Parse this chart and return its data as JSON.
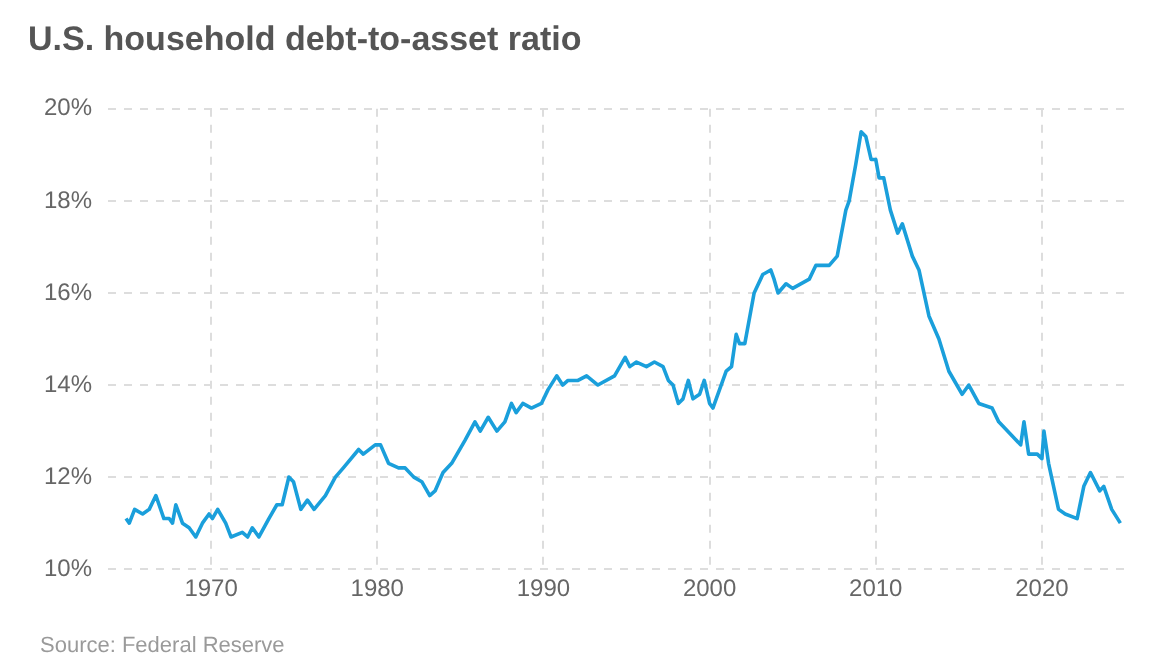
{
  "chart_data": {
    "type": "line",
    "title": "U.S. household debt-to-asset ratio",
    "annotations": [
      "Source: Federal Reserve"
    ],
    "xlim": [
      1963.8,
      2025.3
    ],
    "xticks": [
      1970,
      1980,
      1990,
      2000,
      2010,
      2020
    ],
    "ylim": [
      10,
      20
    ],
    "yticks": [
      {
        "value": 10,
        "label": "10%"
      },
      {
        "value": 12,
        "label": "12%"
      },
      {
        "value": 14,
        "label": "14%"
      },
      {
        "value": 16,
        "label": "16%"
      },
      {
        "value": 18,
        "label": "18%"
      },
      {
        "value": 20,
        "label": "20%"
      }
    ],
    "grid": true,
    "legend": false,
    "marker": "none",
    "line_style": "solid",
    "series": [
      {
        "color": "#1a9fdb",
        "x": [
          1964.88,
          1965.08,
          1965.4,
          1965.88,
          1966.28,
          1966.68,
          1967.16,
          1967.48,
          1967.68,
          1967.88,
          1968.28,
          1968.68,
          1969.08,
          1969.48,
          1969.88,
          1970.08,
          1970.4,
          1970.88,
          1971.2,
          1971.88,
          1972.2,
          1972.48,
          1972.88,
          1973.48,
          1973.96,
          1974.28,
          1974.68,
          1974.96,
          1975.4,
          1975.8,
          1976.2,
          1976.88,
          1977.48,
          1977.96,
          1978.88,
          1979.16,
          1979.88,
          1980.2,
          1980.68,
          1981.28,
          1981.68,
          1982.2,
          1982.68,
          1983.16,
          1983.48,
          1983.96,
          1984.48,
          1985.28,
          1985.88,
          1986.2,
          1986.68,
          1987.2,
          1987.68,
          1988.08,
          1988.36,
          1988.76,
          1989.28,
          1989.88,
          1990.28,
          1990.8,
          1991.16,
          1991.48,
          1992.08,
          1992.6,
          1993.28,
          1994.28,
          1994.6,
          1994.92,
          1995.2,
          1995.6,
          1996.2,
          1996.68,
          1997.2,
          1997.52,
          1997.8,
          1998.12,
          1998.4,
          1998.72,
          1999.0,
          1999.4,
          1999.68,
          2000.0,
          2000.2,
          2000.6,
          2001.0,
          2001.32,
          2001.6,
          2001.8,
          2002.12,
          2002.68,
          2003.2,
          2003.68,
          2003.88,
          2004.12,
          2004.6,
          2005.0,
          2006.0,
          2006.4,
          2006.8,
          2007.2,
          2007.68,
          2008.2,
          2008.4,
          2008.8,
          2009.12,
          2009.4,
          2009.72,
          2010.0,
          2010.2,
          2010.48,
          2010.88,
          2011.32,
          2011.6,
          2012.2,
          2012.6,
          2013.2,
          2013.8,
          2014.4,
          2015.2,
          2015.6,
          2016.2,
          2017.0,
          2017.4,
          2018.2,
          2018.72,
          2018.92,
          2019.2,
          2019.72,
          2020.0,
          2020.12,
          2020.4,
          2021.0,
          2021.4,
          2022.12,
          2022.52,
          2022.92,
          2023.48,
          2023.72,
          2024.2,
          2024.72
        ],
        "values": [
          11.1,
          11.0,
          11.3,
          11.2,
          11.3,
          11.6,
          11.1,
          11.1,
          11.0,
          11.4,
          11.0,
          10.9,
          10.7,
          11.0,
          11.2,
          11.1,
          11.3,
          11.0,
          10.7,
          10.8,
          10.7,
          10.9,
          10.7,
          11.1,
          11.4,
          11.4,
          12.0,
          11.9,
          11.3,
          11.5,
          11.3,
          11.6,
          12.0,
          12.2,
          12.6,
          12.5,
          12.7,
          12.7,
          12.3,
          12.2,
          12.2,
          12.0,
          11.9,
          11.6,
          11.7,
          12.1,
          12.3,
          12.8,
          13.2,
          13.0,
          13.3,
          13.0,
          13.2,
          13.6,
          13.4,
          13.6,
          13.5,
          13.6,
          13.9,
          14.2,
          14.0,
          14.1,
          14.1,
          14.2,
          14.0,
          14.2,
          14.4,
          14.6,
          14.4,
          14.5,
          14.4,
          14.5,
          14.4,
          14.1,
          14.0,
          13.6,
          13.7,
          14.1,
          13.7,
          13.8,
          14.1,
          13.6,
          13.5,
          13.9,
          14.3,
          14.4,
          15.1,
          14.9,
          14.9,
          16.0,
          16.4,
          16.5,
          16.3,
          16.0,
          16.2,
          16.1,
          16.3,
          16.6,
          16.6,
          16.6,
          16.8,
          17.8,
          18.0,
          18.8,
          19.5,
          19.4,
          18.9,
          18.9,
          18.5,
          18.5,
          17.8,
          17.3,
          17.5,
          16.8,
          16.5,
          15.5,
          15.0,
          14.3,
          13.8,
          14.0,
          13.6,
          13.5,
          13.2,
          12.9,
          12.7,
          13.2,
          12.5,
          12.5,
          12.4,
          13.0,
          12.3,
          11.3,
          11.2,
          11.1,
          11.8,
          12.1,
          11.7,
          11.8,
          11.3,
          11.0
        ]
      }
    ]
  }
}
